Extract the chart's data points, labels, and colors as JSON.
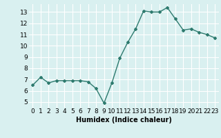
{
  "x": [
    0,
    1,
    2,
    3,
    4,
    5,
    6,
    7,
    8,
    9,
    10,
    11,
    12,
    13,
    14,
    15,
    16,
    17,
    18,
    19,
    20,
    21,
    22,
    23
  ],
  "y": [
    6.5,
    7.2,
    6.7,
    6.9,
    6.9,
    6.9,
    6.9,
    6.8,
    6.2,
    4.9,
    6.7,
    8.9,
    10.3,
    11.5,
    13.1,
    13.0,
    13.0,
    13.4,
    12.4,
    11.4,
    11.5,
    11.2,
    11.0,
    10.7
  ],
  "line_color": "#2d7a6e",
  "marker": "D",
  "marker_size": 2,
  "line_width": 1.0,
  "xlabel": "Humidex (Indice chaleur)",
  "xlabel_fontsize": 7,
  "bg_color": "#d9f0f0",
  "grid_color": "#ffffff",
  "xlim": [
    -0.5,
    23.5
  ],
  "ylim": [
    4.5,
    13.7
  ],
  "yticks": [
    5,
    6,
    7,
    8,
    9,
    10,
    11,
    12,
    13
  ],
  "xticks": [
    0,
    1,
    2,
    3,
    4,
    5,
    6,
    7,
    8,
    9,
    10,
    11,
    12,
    13,
    14,
    15,
    16,
    17,
    18,
    19,
    20,
    21,
    22,
    23
  ],
  "tick_fontsize": 6.5
}
